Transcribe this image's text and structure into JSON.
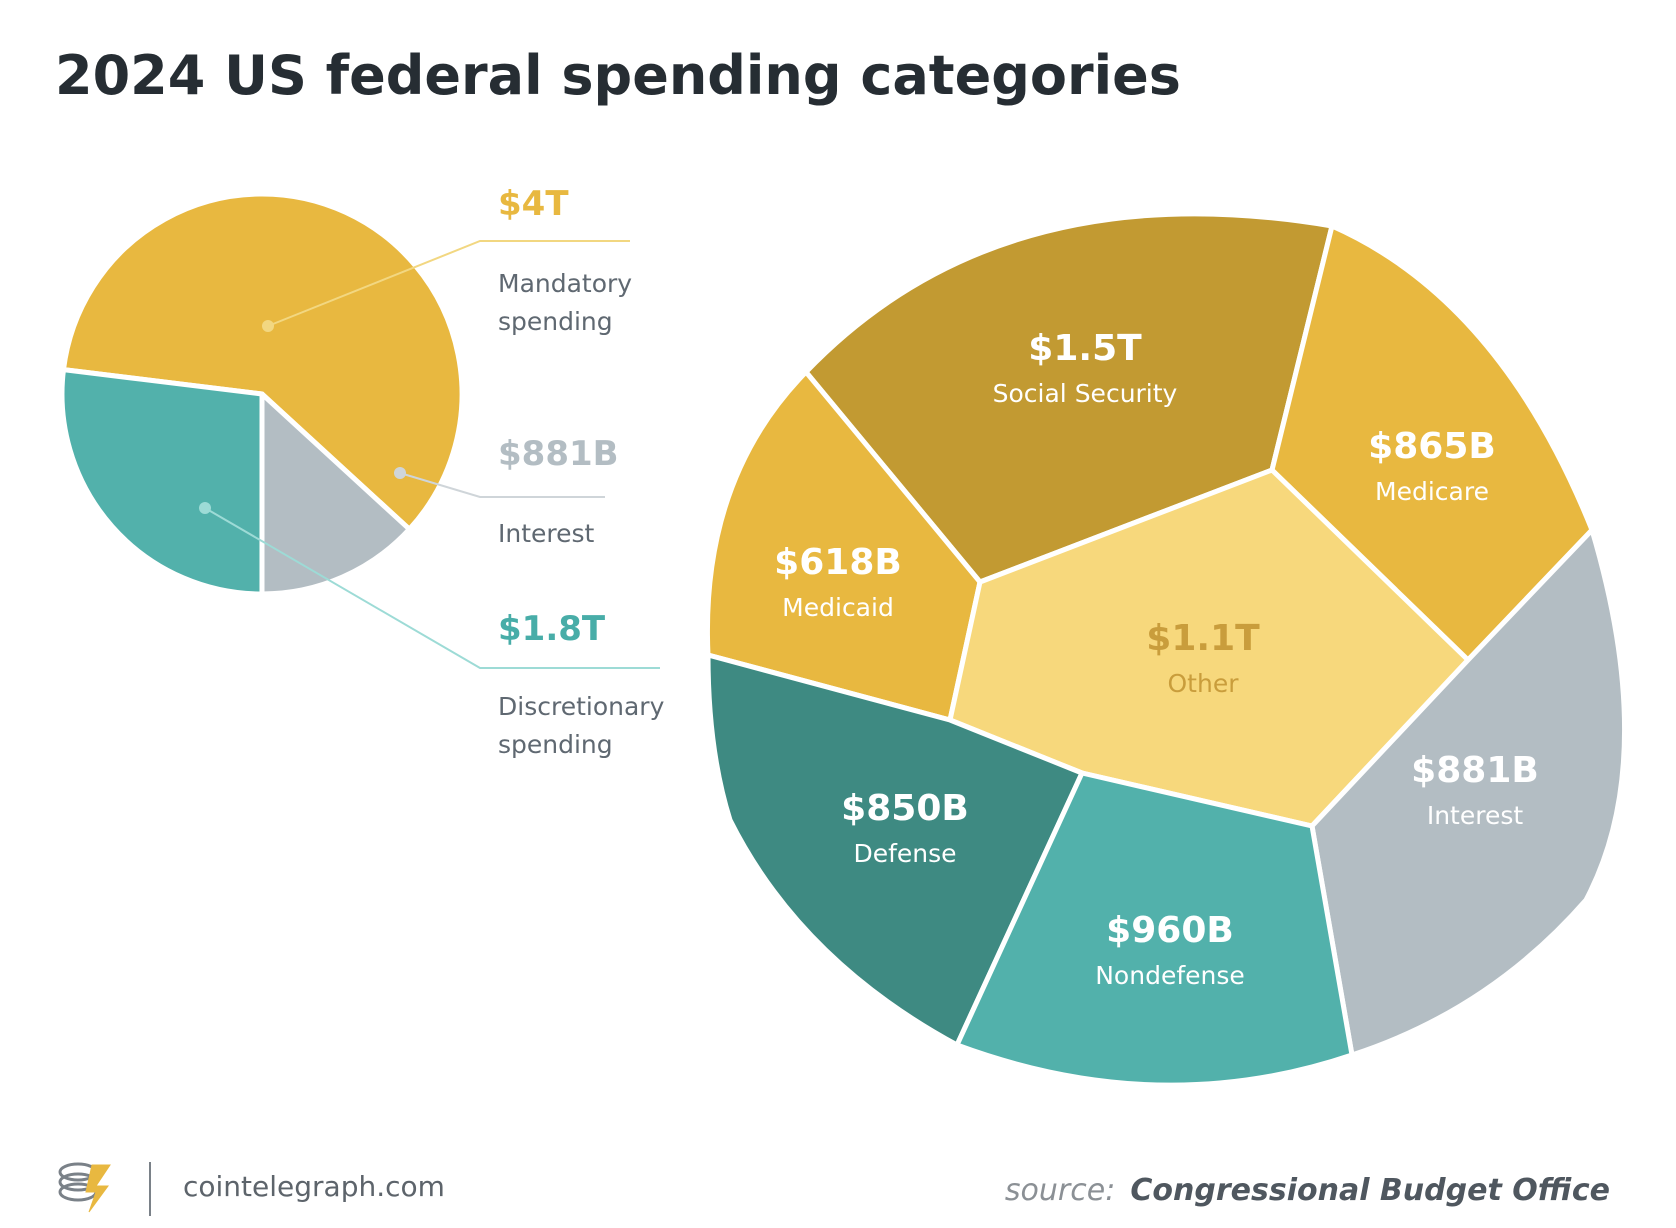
{
  "chart_data": [
    {
      "type": "pie",
      "title": "2024 US federal spending categories",
      "slices": [
        {
          "label": "Mandatory spending",
          "value": 4000,
          "display_value": "$4T",
          "color": "#e8b840",
          "value_color": "#e8b840",
          "line_color": "#f2d781"
        },
        {
          "label": "Interest",
          "value": 881,
          "display_value": "$881B",
          "color": "#b3bdc3",
          "value_color": "#b3bdc3",
          "line_color": "#cfd5d9"
        },
        {
          "label": "Discretionary spending",
          "value": 1800,
          "display_value": "$1.8T",
          "color": "#52b1ab",
          "value_color": "#48ada8",
          "line_color": "#9ddbd6"
        }
      ],
      "units": "USD billions"
    },
    {
      "type": "voronoi-treemap",
      "cells": [
        {
          "name": "Social Security",
          "value": 1500,
          "display_value": "$1.5T",
          "parent": "Mandatory spending",
          "color": "#c29a32",
          "text_color": "#ffffff"
        },
        {
          "name": "Medicare",
          "value": 865,
          "display_value": "$865B",
          "parent": "Mandatory spending",
          "color": "#e8b840",
          "text_color": "#ffffff"
        },
        {
          "name": "Medicaid",
          "value": 618,
          "display_value": "$618B",
          "parent": "Mandatory spending",
          "color": "#e8b840",
          "text_color": "#ffffff"
        },
        {
          "name": "Other",
          "value": 1100,
          "display_value": "$1.1T",
          "parent": "Mandatory spending",
          "color": "#f7d87c",
          "text_color": "#c99d3c"
        },
        {
          "name": "Interest",
          "value": 881,
          "display_value": "$881B",
          "parent": "Interest",
          "color": "#b3bdc3",
          "text_color": "#ffffff"
        },
        {
          "name": "Defense",
          "value": 850,
          "display_value": "$850B",
          "parent": "Discretionary spending",
          "color": "#3e8a82",
          "text_color": "#ffffff"
        },
        {
          "name": "Nondefense",
          "value": 960,
          "display_value": "$960B",
          "parent": "Discretionary spending",
          "color": "#52b1ab",
          "text_color": "#ffffff"
        }
      ]
    }
  ],
  "footer": {
    "brand": "cointelegraph.com",
    "source_prefix": "source:",
    "source_name": "Congressional Budget Office"
  }
}
